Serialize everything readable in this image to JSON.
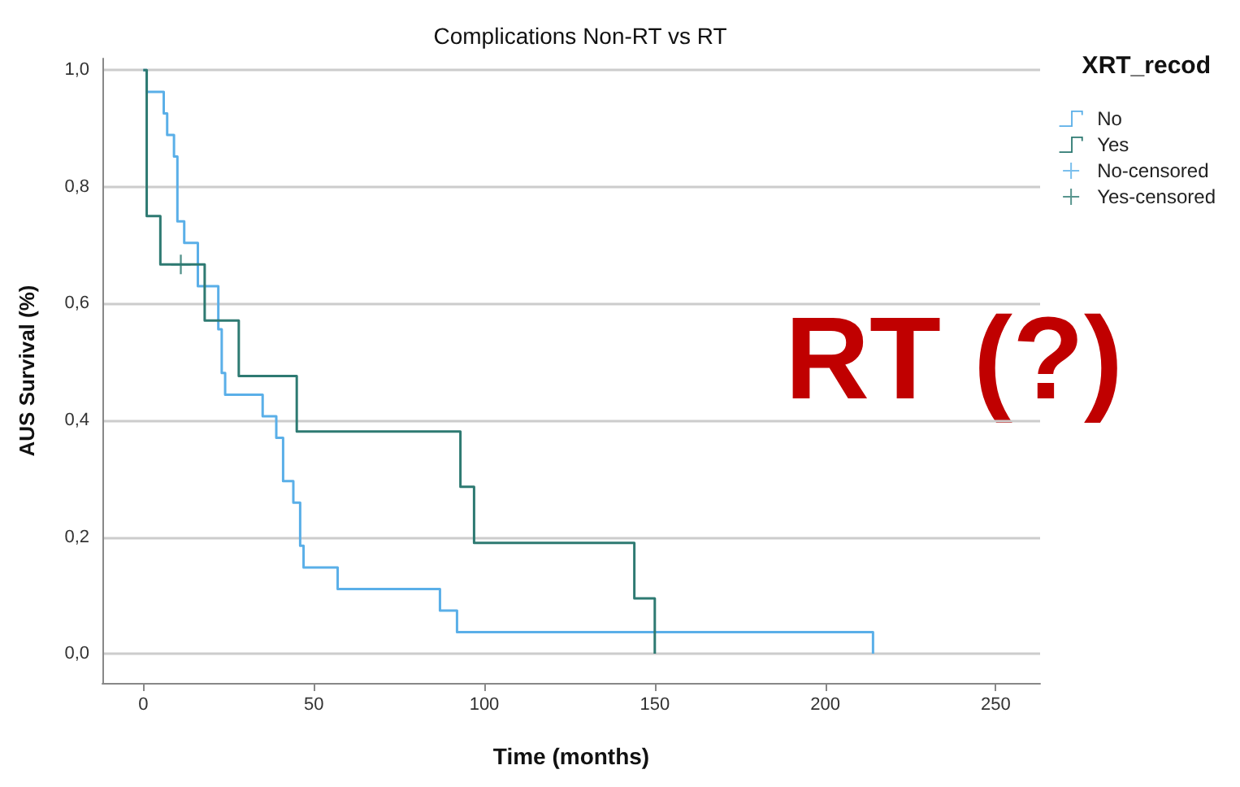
{
  "chart_data": {
    "type": "step",
    "title": "Complications Non-RT vs RT",
    "xlabel": "Time (months)",
    "ylabel": "AUS Survival (%)",
    "legend_title": "XRT_recod",
    "annotations": [
      "RT (?)"
    ],
    "series": [
      {
        "name": "No",
        "color": "#5aafe8",
        "x": [
          0,
          1,
          6,
          7,
          9,
          10,
          12,
          16,
          22,
          23,
          24,
          35,
          39,
          41,
          44,
          46,
          47,
          57,
          87,
          92,
          214
        ],
        "values": [
          1,
          0.963,
          0.926,
          0.889,
          0.852,
          0.741,
          0.704,
          0.63,
          0.556,
          0.481,
          0.444,
          0.407,
          0.37,
          0.296,
          0.259,
          0.185,
          0.148,
          0.111,
          0.074,
          0.037,
          0
        ]
      },
      {
        "name": "Yes",
        "color": "#2e7a72",
        "x": [
          0,
          1,
          5,
          18,
          28,
          45,
          93,
          97,
          144,
          150
        ],
        "values": [
          1,
          0.75,
          0.667,
          0.571,
          0.476,
          0.381,
          0.286,
          0.19,
          0.095,
          0
        ]
      },
      {
        "name": "No-censored",
        "type": "scatter",
        "marker": "cross",
        "color": "#5aafe8"
      },
      {
        "name": "Yes-censored",
        "type": "scatter",
        "marker": "cross",
        "color": "#2e7a72",
        "x": [
          11
        ],
        "values": [
          0.667
        ]
      }
    ],
    "xlim": [
      -12,
      263
    ],
    "xticks": [
      0,
      50,
      100,
      150,
      200,
      250
    ],
    "ylim": [
      -0.05,
      1.02
    ],
    "yticks": [
      {
        "value": 0,
        "label": "0,0"
      },
      {
        "value": 0.2,
        "label": "0,2"
      },
      {
        "value": 0.4,
        "label": "0,4"
      },
      {
        "value": 0.6,
        "label": "0,6"
      },
      {
        "value": 0.8,
        "label": "0,8"
      },
      {
        "value": 1,
        "label": "1,0"
      }
    ],
    "grid": "y",
    "legend": "top right"
  }
}
